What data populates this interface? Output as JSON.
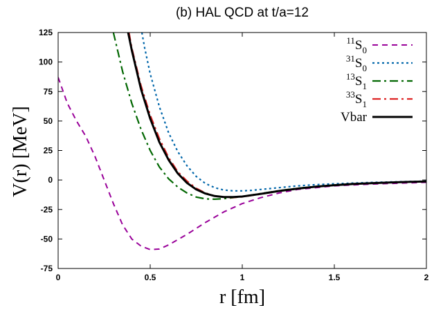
{
  "chart_data": {
    "type": "line",
    "title": "(b) HAL QCD at t/a=12",
    "xlabel": "r [fm]",
    "ylabel": "V(r) [MeV]",
    "xlim": [
      0,
      2
    ],
    "ylim": [
      -75,
      125
    ],
    "xticks": [
      0,
      0.5,
      1,
      1.5,
      2
    ],
    "xtick_labels": [
      "0",
      "0.5",
      "1",
      "1.5",
      "2"
    ],
    "yticks": [
      -75,
      -50,
      -25,
      0,
      25,
      50,
      75,
      100,
      125
    ],
    "ytick_labels": [
      "-75",
      "-50",
      "-25",
      "0",
      "25",
      "50",
      "75",
      "100",
      "125"
    ],
    "legend_position": "top-right",
    "series": [
      {
        "name": "11S0",
        "label": {
          "sup": "11",
          "main": "S",
          "sub": "0"
        },
        "color": "#990099",
        "dash": "dashed",
        "x": [
          0,
          0.05,
          0.1,
          0.15,
          0.2,
          0.25,
          0.3,
          0.35,
          0.4,
          0.45,
          0.5,
          0.55,
          0.6,
          0.7,
          0.8,
          0.9,
          1.0,
          1.1,
          1.2,
          1.3,
          1.4,
          1.5,
          1.6,
          1.7,
          1.8,
          1.9,
          2.0
        ],
        "y": [
          87,
          65,
          50,
          37,
          20,
          0,
          -20,
          -38,
          -50,
          -56,
          -59,
          -58.5,
          -55,
          -46,
          -36,
          -27,
          -20,
          -15,
          -11,
          -8,
          -6.5,
          -5,
          -4.2,
          -3.5,
          -3,
          -2.5,
          -2
        ]
      },
      {
        "name": "31S0",
        "label": {
          "sup": "31",
          "main": "S",
          "sub": "0"
        },
        "color": "#0066aa",
        "dash": "dotted",
        "x": [
          0.455,
          0.47,
          0.5,
          0.55,
          0.6,
          0.65,
          0.7,
          0.75,
          0.8,
          0.85,
          0.9,
          0.95,
          1.0,
          1.05,
          1.1,
          1.2,
          1.3,
          1.4,
          1.5,
          1.6,
          1.7,
          1.8,
          1.9,
          2.0
        ],
        "y": [
          125,
          112,
          90,
          62,
          40,
          24,
          12,
          3,
          -3,
          -6.5,
          -8.5,
          -9.2,
          -9.2,
          -8.8,
          -8,
          -6.5,
          -5,
          -4,
          -3.2,
          -2.6,
          -2.1,
          -1.7,
          -1.3,
          -1
        ]
      },
      {
        "name": "13S1",
        "label": {
          "sup": "13",
          "main": "S",
          "sub": "1"
        },
        "color": "#006600",
        "dash": "dash-dot",
        "x": [
          0.3,
          0.35,
          0.4,
          0.45,
          0.5,
          0.55,
          0.6,
          0.65,
          0.7,
          0.75,
          0.8,
          0.85,
          0.9,
          0.95,
          1.0,
          1.1,
          1.2,
          1.3,
          1.4,
          1.5,
          1.6,
          1.7,
          1.8,
          1.9,
          2.0
        ],
        "y": [
          125,
          92,
          65,
          43,
          25,
          11,
          1,
          -6,
          -11,
          -14.5,
          -16,
          -16.3,
          -15.8,
          -15,
          -14,
          -11.5,
          -9,
          -7,
          -5.5,
          -4.2,
          -3.4,
          -2.7,
          -2.1,
          -1.6,
          -1.2
        ]
      },
      {
        "name": "33S1",
        "label": {
          "sup": "33",
          "main": "S",
          "sub": "1"
        },
        "color": "#dd2222",
        "dash": "dash-dot",
        "x": [
          0.385,
          0.4,
          0.45,
          0.5,
          0.55,
          0.6,
          0.65,
          0.7,
          0.75,
          0.8,
          0.85,
          0.9,
          0.95,
          1.0,
          1.1,
          1.2,
          1.3,
          1.4,
          1.5,
          1.6,
          1.7,
          1.8,
          1.9,
          2.0
        ],
        "y": [
          125,
          112,
          80,
          55,
          35,
          19,
          7,
          -1,
          -7,
          -11,
          -13.5,
          -14.6,
          -14.8,
          -14.3,
          -12,
          -9.5,
          -7.5,
          -5.8,
          -4.5,
          -3.5,
          -2.8,
          -2.2,
          -1.7,
          -1.3
        ]
      },
      {
        "name": "Vbar",
        "label": {
          "sup": "",
          "main": "Vbar",
          "sub": ""
        },
        "color": "#000000",
        "dash": "solid",
        "x": [
          0.38,
          0.4,
          0.45,
          0.5,
          0.55,
          0.6,
          0.65,
          0.7,
          0.75,
          0.8,
          0.85,
          0.9,
          0.95,
          1.0,
          1.1,
          1.2,
          1.3,
          1.4,
          1.5,
          1.6,
          1.7,
          1.8,
          1.9,
          2.0
        ],
        "y": [
          125,
          110,
          77,
          52,
          32,
          17,
          5.5,
          -2.5,
          -8,
          -11.5,
          -13.6,
          -14.5,
          -14.5,
          -14,
          -11.8,
          -9.3,
          -7.3,
          -5.7,
          -4.4,
          -3.4,
          -2.7,
          -2.1,
          -1.6,
          -1.2
        ]
      }
    ]
  }
}
